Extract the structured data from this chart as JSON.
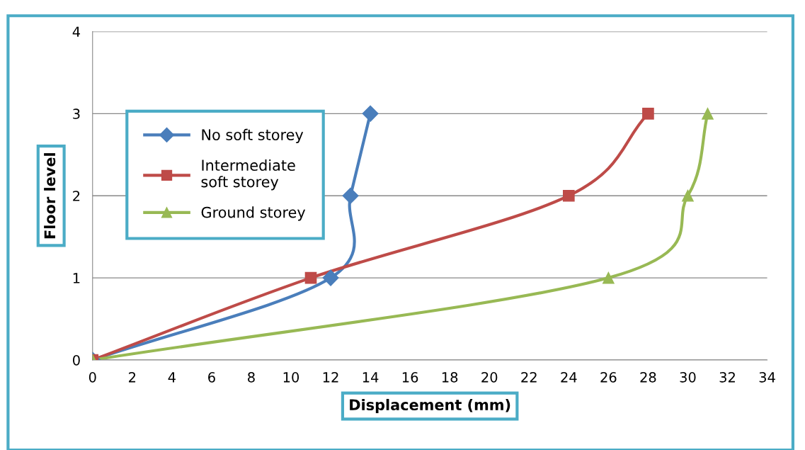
{
  "chart_data": {
    "type": "line",
    "xlabel": "Displacement (mm)",
    "ylabel": "Floor level",
    "series": [
      {
        "name": "No soft storey",
        "color": "#4a7ebb",
        "marker": "diamond",
        "x": [
          0,
          12,
          13,
          14
        ],
        "values": [
          0,
          1,
          2,
          3
        ]
      },
      {
        "name": "Intermediate\nsoft storey",
        "color": "#be4b48",
        "marker": "square",
        "x": [
          0,
          11,
          24,
          28
        ],
        "values": [
          0,
          1,
          2,
          3
        ]
      },
      {
        "name": "Ground storey",
        "color": "#98b954",
        "marker": "triangle",
        "x": [
          0,
          26,
          30,
          31
        ],
        "values": [
          0,
          1,
          2,
          3
        ]
      }
    ],
    "xlim": [
      0,
      34
    ],
    "xticks": [
      0,
      2,
      4,
      6,
      8,
      10,
      12,
      14,
      16,
      18,
      20,
      22,
      24,
      26,
      28,
      30,
      32,
      34
    ],
    "ylim": [
      0,
      4
    ],
    "yticks": [
      0,
      1,
      2,
      3,
      4
    ],
    "grid": "y",
    "legend": "top left",
    "line_style": "solid"
  }
}
